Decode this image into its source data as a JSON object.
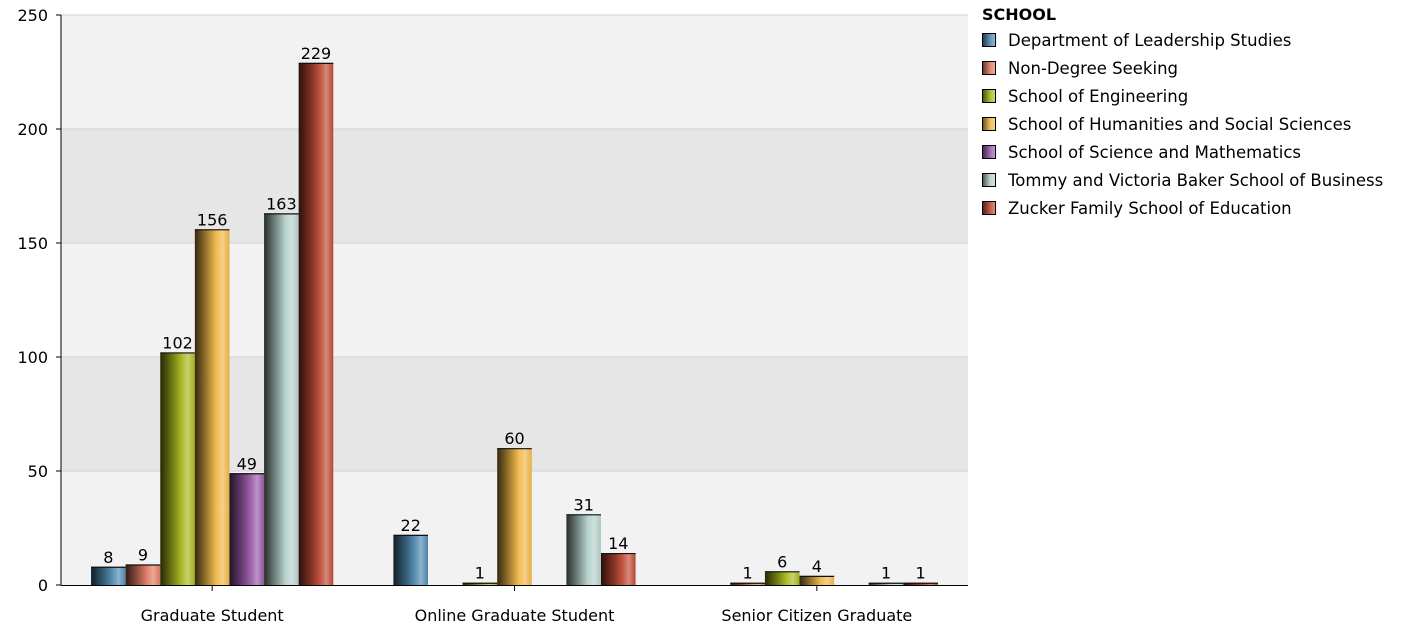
{
  "chart_data": {
    "type": "bar",
    "title": "",
    "xlabel": "",
    "ylabel": "",
    "ylim": [
      0,
      250
    ],
    "yticks": [
      0,
      50,
      100,
      150,
      200,
      250
    ],
    "grid": true,
    "legend_position": "top-right",
    "legend_title": "SCHOOL",
    "categories": [
      "Graduate Student",
      "Online Graduate Student",
      "Senior Citizen Graduate"
    ],
    "series": [
      {
        "name": "Department of Leadership Studies",
        "color": "#4f8ab0",
        "values": [
          8,
          22,
          null
        ]
      },
      {
        "name": "Non-Degree Seeking",
        "color": "#e07a62",
        "values": [
          9,
          null,
          1
        ]
      },
      {
        "name": "School of Engineering",
        "color": "#a8b81e",
        "values": [
          102,
          1,
          6
        ]
      },
      {
        "name": "School of Humanities and Social Sciences",
        "color": "#f0b848",
        "values": [
          156,
          60,
          4
        ]
      },
      {
        "name": "School of Science and Mathematics",
        "color": "#9a5aa8",
        "values": [
          49,
          null,
          null
        ]
      },
      {
        "name": "Tommy and Victoria Baker School of Business",
        "color": "#b4d0ca",
        "values": [
          163,
          31,
          1
        ]
      },
      {
        "name": "Zucker Family School of Education",
        "color": "#c04a36",
        "values": [
          229,
          14,
          1
        ]
      }
    ]
  }
}
